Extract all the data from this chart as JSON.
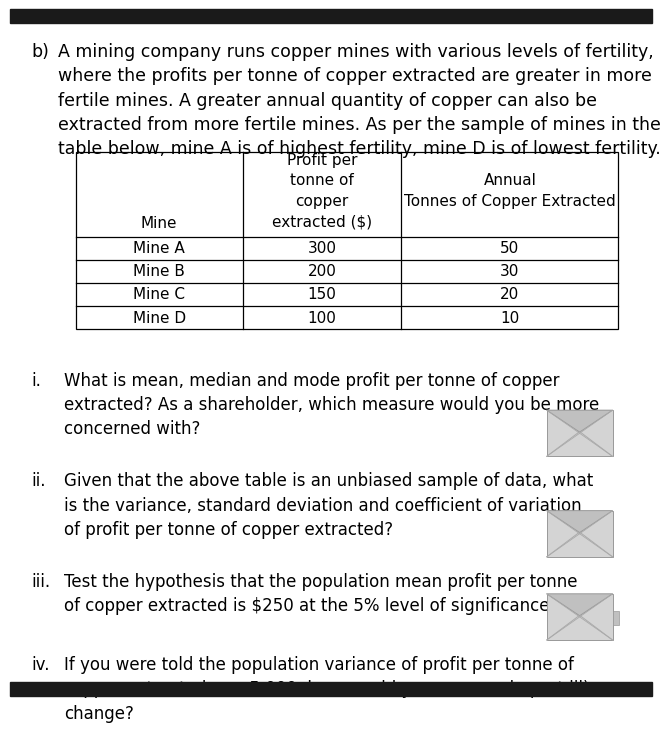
{
  "background_color": "#ffffff",
  "top_bar_color": "#1a1a1a",
  "bottom_bar_color": "#1a1a1a",
  "intro_text_b": "b)",
  "intro_text_main": "A mining company runs copper mines with various levels of fertility,\nwhere the profits per tonne of copper extracted are greater in more\nfertile mines. A greater annual quantity of copper can also be\nextracted from more fertile mines. As per the sample of mines in the\ntable below, mine A is of highest fertility, mine D is of lowest fertility.",
  "table_col_headers_row1": [
    "",
    "Profit per",
    ""
  ],
  "table_col_headers_row2": [
    "",
    "tonne of",
    "Annual"
  ],
  "table_col_headers_row3": [
    "",
    "copper",
    "Tonnes of Copper Extracted"
  ],
  "table_col_headers_row4": [
    "Mine",
    "extracted ($)",
    ""
  ],
  "table_rows": [
    [
      "Mine A",
      "300",
      "50"
    ],
    [
      "Mine B",
      "200",
      "30"
    ],
    [
      "Mine C",
      "150",
      "20"
    ],
    [
      "Mine D",
      "100",
      "10"
    ]
  ],
  "questions": [
    {
      "label": "i.",
      "text": "What is mean, median and mode profit per tonne of copper\nextracted? As a shareholder, which measure would you be more\nconcerned with?",
      "has_envelope": true
    },
    {
      "label": "ii.",
      "text": "Given that the above table is an unbiased sample of data, what\nis the variance, standard deviation and coefficient of variation\nof profit per tonne of copper extracted?",
      "has_envelope": true
    },
    {
      "label": "iii.",
      "text": "Test the hypothesis that the population mean profit per tonne\nof copper extracted is $250 at the 5% level of significance.",
      "has_envelope": true
    },
    {
      "label": "iv.",
      "text": "If you were told the population variance of profit per tonne of\ncopper extracted was 5,000, how would your answer in part iii)\nchange?",
      "has_envelope": false
    }
  ],
  "text_color": "#000000",
  "font_size_intro": 12.5,
  "font_size_table": 11.0,
  "font_size_questions": 12.0,
  "envelope_color_body": "#d4d4d4",
  "envelope_color_flap": "#c0c0c0",
  "envelope_line_color": "#aaaaaa",
  "envelope_border_color": "#999999"
}
